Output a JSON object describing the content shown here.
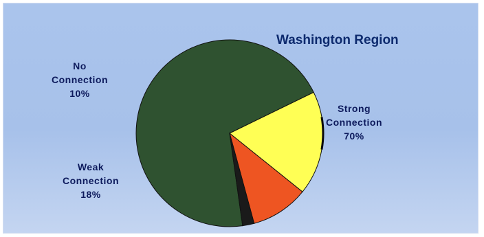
{
  "chart_data": {
    "type": "pie",
    "title": "Washington Region",
    "slices": [
      {
        "name_lines": [
          "Strong",
          "Connection"
        ],
        "pct_label": "70%",
        "value": 70,
        "color": "#2f5230"
      },
      {
        "name_lines": [
          "Weak",
          "Connection"
        ],
        "pct_label": "18%",
        "value": 18,
        "color": "#ffff55"
      },
      {
        "name_lines": [
          "No",
          "Connection"
        ],
        "pct_label": "10%",
        "value": 10,
        "color": "#ee5522"
      },
      {
        "name_lines": [],
        "pct_label": "",
        "value": 2,
        "color": "#1a1a1a"
      }
    ]
  }
}
